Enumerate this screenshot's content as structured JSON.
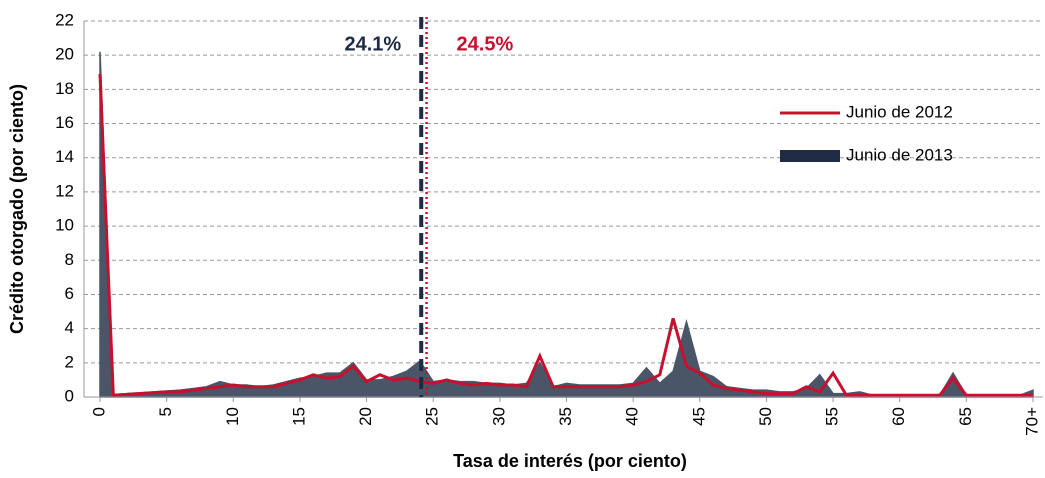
{
  "chart_data": {
    "type": "area-line",
    "xlabel": "Tasa de interés (por ciento)",
    "ylabel": "Crédito otorgado (por ciento)",
    "x": [
      0,
      1,
      2,
      3,
      4,
      5,
      6,
      7,
      8,
      9,
      10,
      11,
      12,
      13,
      14,
      15,
      16,
      17,
      18,
      19,
      20,
      21,
      22,
      23,
      24,
      25,
      26,
      27,
      28,
      29,
      30,
      31,
      32,
      33,
      34,
      35,
      36,
      37,
      38,
      39,
      40,
      41,
      42,
      43,
      44,
      45,
      46,
      47,
      48,
      49,
      50,
      51,
      52,
      53,
      54,
      55,
      56,
      57,
      58,
      59,
      60,
      61,
      62,
      63,
      64,
      65,
      66,
      67,
      68,
      69,
      70
    ],
    "series": [
      {
        "name": "Junio de 2013",
        "kind": "area",
        "color": "#4b5568",
        "values": [
          20.2,
          0.15,
          0.2,
          0.25,
          0.3,
          0.35,
          0.4,
          0.5,
          0.6,
          0.9,
          0.7,
          0.7,
          0.6,
          0.7,
          0.9,
          1.1,
          1.2,
          1.4,
          1.4,
          2.0,
          1.0,
          1.0,
          1.2,
          1.5,
          2.1,
          0.9,
          1.0,
          0.9,
          0.9,
          0.8,
          0.8,
          0.7,
          0.8,
          2.0,
          0.6,
          0.8,
          0.7,
          0.7,
          0.7,
          0.7,
          0.8,
          1.7,
          0.8,
          1.5,
          4.4,
          1.5,
          1.2,
          0.6,
          0.5,
          0.4,
          0.4,
          0.3,
          0.3,
          0.5,
          1.3,
          0.2,
          0.2,
          0.3,
          0.1,
          0.1,
          0.1,
          0.1,
          0.1,
          0.1,
          1.4,
          0.1,
          0.1,
          0.1,
          0.1,
          0.1,
          0.4
        ]
      },
      {
        "name": "Junio de 2012",
        "kind": "line",
        "color": "#c8102e",
        "values": [
          18.9,
          0.1,
          0.15,
          0.2,
          0.25,
          0.3,
          0.3,
          0.4,
          0.5,
          0.6,
          0.7,
          0.6,
          0.6,
          0.6,
          0.8,
          1.0,
          1.3,
          1.1,
          1.2,
          1.8,
          0.9,
          1.3,
          1.0,
          1.1,
          0.9,
          0.8,
          1.0,
          0.8,
          0.7,
          0.8,
          0.7,
          0.7,
          0.6,
          2.4,
          0.6,
          0.6,
          0.6,
          0.6,
          0.6,
          0.6,
          0.7,
          0.9,
          1.3,
          4.6,
          1.8,
          1.4,
          0.7,
          0.5,
          0.4,
          0.3,
          0.2,
          0.2,
          0.2,
          0.6,
          0.3,
          1.4,
          0.1,
          0.1,
          0.1,
          0.1,
          0.1,
          0.1,
          0.1,
          0.1,
          1.1,
          0.1,
          0.1,
          0.1,
          0.1,
          0.1,
          0.1
        ]
      }
    ],
    "annotations": [
      {
        "x": 24.1,
        "label": "24.1%",
        "color": "#1f2a44",
        "style": "dashed"
      },
      {
        "x": 24.5,
        "label": "24.5%",
        "color": "#c8102e",
        "style": "dotted"
      }
    ],
    "xlim": [
      0,
      70
    ],
    "xticks": [
      0,
      5,
      10,
      15,
      20,
      25,
      30,
      35,
      40,
      45,
      50,
      55,
      60,
      65,
      {
        "value": 70,
        "label": "70+"
      }
    ],
    "ylim": [
      0,
      22
    ],
    "yticks": [
      0,
      2,
      4,
      6,
      8,
      10,
      12,
      14,
      16,
      18,
      20,
      22
    ],
    "grid": true,
    "legend": "upper right"
  }
}
